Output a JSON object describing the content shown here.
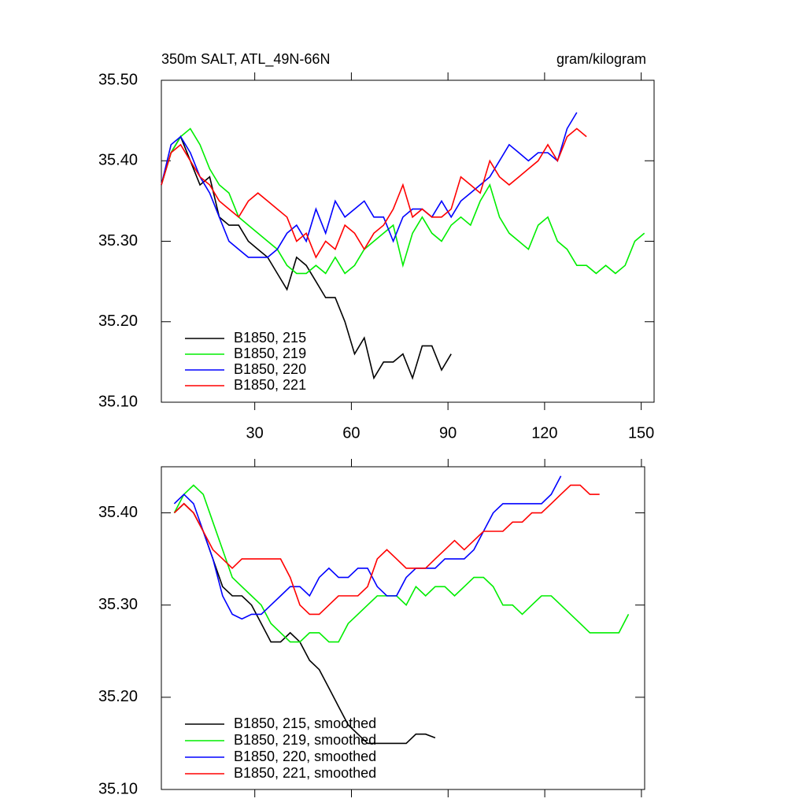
{
  "chart_data": [
    {
      "type": "line",
      "title": "350m SALT, ATL_49N-66N",
      "units": "gram/kilogram",
      "xlim": [
        1,
        154
      ],
      "xticks": [
        30,
        60,
        90,
        120,
        150
      ],
      "xtick_labels": true,
      "ylim": [
        35.1,
        35.5
      ],
      "yticks": [
        {
          "value": 35.1,
          "label": "35.10"
        },
        {
          "value": 35.2,
          "label": "35.20"
        },
        {
          "value": 35.3,
          "label": "35.30"
        },
        {
          "value": 35.4,
          "label": "35.40"
        },
        {
          "value": 35.5,
          "label": "35.50"
        }
      ],
      "legend": "lower left",
      "series": [
        {
          "name": "B1850, 215",
          "color": "#000000",
          "x": [
            1,
            4,
            7,
            10,
            13,
            16,
            19,
            22,
            25,
            28,
            31,
            34,
            37,
            40,
            43,
            46,
            49,
            52,
            55,
            58,
            61,
            64,
            67,
            70,
            73,
            76,
            79,
            82,
            85,
            88,
            91
          ],
          "values": [
            35.37,
            35.41,
            35.43,
            35.4,
            35.37,
            35.38,
            35.33,
            35.32,
            35.32,
            35.3,
            35.29,
            35.28,
            35.26,
            35.24,
            35.28,
            35.27,
            35.25,
            35.23,
            35.23,
            35.2,
            35.16,
            35.18,
            35.13,
            35.15,
            35.15,
            35.16,
            35.13,
            35.17,
            35.17,
            35.14,
            35.16
          ]
        },
        {
          "name": "B1850, 219",
          "color": "#00ee00",
          "x": [
            1,
            4,
            7,
            10,
            13,
            16,
            19,
            22,
            25,
            28,
            31,
            34,
            37,
            40,
            43,
            46,
            49,
            52,
            55,
            58,
            61,
            64,
            67,
            70,
            73,
            76,
            79,
            82,
            85,
            88,
            91,
            94,
            97,
            100,
            103,
            106,
            109,
            112,
            115,
            118,
            121,
            124,
            127,
            130,
            133,
            136,
            139,
            142,
            145,
            148,
            151
          ],
          "values": [
            35.37,
            35.41,
            35.43,
            35.44,
            35.42,
            35.39,
            35.37,
            35.36,
            35.33,
            35.32,
            35.31,
            35.3,
            35.29,
            35.27,
            35.26,
            35.26,
            35.27,
            35.26,
            35.28,
            35.26,
            35.27,
            35.29,
            35.3,
            35.31,
            35.32,
            35.27,
            35.31,
            35.33,
            35.31,
            35.3,
            35.32,
            35.33,
            35.32,
            35.35,
            35.37,
            35.33,
            35.31,
            35.3,
            35.29,
            35.32,
            35.33,
            35.3,
            35.29,
            35.27,
            35.27,
            35.26,
            35.27,
            35.26,
            35.27,
            35.3,
            35.31
          ]
        },
        {
          "name": "B1850, 220",
          "color": "#0000ff",
          "x": [
            1,
            4,
            7,
            10,
            13,
            16,
            19,
            22,
            25,
            28,
            31,
            34,
            37,
            40,
            43,
            46,
            49,
            52,
            55,
            58,
            61,
            64,
            67,
            70,
            73,
            76,
            79,
            82,
            85,
            88,
            91,
            94,
            97,
            100,
            103,
            106,
            109,
            112,
            115,
            118,
            121,
            124,
            127,
            130
          ],
          "values": [
            35.37,
            35.42,
            35.43,
            35.41,
            35.38,
            35.36,
            35.33,
            35.3,
            35.29,
            35.28,
            35.28,
            35.28,
            35.29,
            35.31,
            35.32,
            35.3,
            35.34,
            35.31,
            35.35,
            35.33,
            35.34,
            35.35,
            35.33,
            35.33,
            35.3,
            35.33,
            35.34,
            35.34,
            35.33,
            35.35,
            35.33,
            35.35,
            35.36,
            35.37,
            35.38,
            35.4,
            35.42,
            35.41,
            35.4,
            35.41,
            35.41,
            35.4,
            35.44,
            35.46
          ]
        },
        {
          "name": "B1850, 221",
          "color": "#ff0000",
          "x": [
            1,
            4,
            7,
            10,
            13,
            16,
            19,
            22,
            25,
            28,
            31,
            34,
            37,
            40,
            43,
            46,
            49,
            52,
            55,
            58,
            61,
            64,
            67,
            70,
            73,
            76,
            79,
            82,
            85,
            88,
            91,
            94,
            97,
            100,
            103,
            106,
            109,
            112,
            115,
            118,
            121,
            124,
            127,
            130,
            133
          ],
          "values": [
            35.37,
            35.41,
            35.42,
            35.4,
            35.38,
            35.37,
            35.35,
            35.34,
            35.33,
            35.35,
            35.36,
            35.35,
            35.34,
            35.33,
            35.3,
            35.31,
            35.28,
            35.3,
            35.29,
            35.32,
            35.31,
            35.29,
            35.31,
            35.32,
            35.34,
            35.37,
            35.33,
            35.34,
            35.33,
            35.33,
            35.34,
            35.38,
            35.37,
            35.36,
            35.4,
            35.38,
            35.37,
            35.38,
            35.39,
            35.4,
            35.42,
            35.4,
            35.43,
            35.44,
            35.43
          ]
        }
      ]
    },
    {
      "type": "line",
      "xlim": [
        1,
        151
      ],
      "xticks": [
        30,
        60,
        90,
        120,
        150
      ],
      "xtick_labels": false,
      "ylim": [
        35.1,
        35.45
      ],
      "yticks": [
        {
          "value": 35.1,
          "label": "35.10"
        },
        {
          "value": 35.2,
          "label": "35.20"
        },
        {
          "value": 35.3,
          "label": "35.30"
        },
        {
          "value": 35.4,
          "label": "35.40"
        }
      ],
      "legend": "lower left",
      "series": [
        {
          "name": "B1850, 215, smoothed",
          "color": "#000000",
          "x": [
            5,
            8,
            11,
            14,
            17,
            20,
            23,
            26,
            29,
            32,
            35,
            38,
            41,
            44,
            47,
            50,
            53,
            56,
            59,
            62,
            65,
            68,
            71,
            74,
            77,
            80,
            83,
            86
          ],
          "values": [
            35.4,
            35.41,
            35.4,
            35.38,
            35.35,
            35.32,
            35.31,
            35.31,
            35.3,
            35.28,
            35.26,
            35.26,
            35.27,
            35.26,
            35.24,
            35.23,
            35.21,
            35.19,
            35.17,
            35.16,
            35.15,
            35.15,
            35.15,
            35.15,
            35.15,
            35.16,
            35.16,
            35.156
          ]
        },
        {
          "name": "B1850, 219, smoothed",
          "color": "#00ee00",
          "x": [
            5,
            8,
            11,
            14,
            17,
            20,
            23,
            26,
            29,
            32,
            35,
            38,
            41,
            44,
            47,
            50,
            53,
            56,
            59,
            62,
            65,
            68,
            71,
            74,
            77,
            80,
            83,
            86,
            89,
            92,
            95,
            98,
            101,
            104,
            107,
            110,
            113,
            116,
            119,
            122,
            125,
            128,
            131,
            134,
            137,
            140,
            143,
            146
          ],
          "values": [
            35.4,
            35.42,
            35.43,
            35.42,
            35.39,
            35.36,
            35.33,
            35.32,
            35.31,
            35.3,
            35.28,
            35.27,
            35.26,
            35.26,
            35.27,
            35.27,
            35.26,
            35.26,
            35.28,
            35.29,
            35.3,
            35.31,
            35.31,
            35.31,
            35.3,
            35.32,
            35.31,
            35.32,
            35.32,
            35.31,
            35.32,
            35.33,
            35.33,
            35.32,
            35.3,
            35.3,
            35.29,
            35.3,
            35.31,
            35.31,
            35.3,
            35.29,
            35.28,
            35.27,
            35.27,
            35.27,
            35.27,
            35.29
          ]
        },
        {
          "name": "B1850, 220, smoothed",
          "color": "#0000ff",
          "x": [
            5,
            8,
            11,
            14,
            17,
            20,
            23,
            26,
            29,
            32,
            35,
            38,
            41,
            44,
            47,
            50,
            53,
            56,
            59,
            62,
            65,
            68,
            71,
            74,
            77,
            80,
            83,
            86,
            89,
            92,
            95,
            98,
            101,
            104,
            107,
            110,
            113,
            116,
            119,
            122,
            125
          ],
          "values": [
            35.41,
            35.42,
            35.41,
            35.38,
            35.35,
            35.31,
            35.29,
            35.285,
            35.29,
            35.29,
            35.3,
            35.31,
            35.32,
            35.32,
            35.31,
            35.33,
            35.34,
            35.33,
            35.33,
            35.34,
            35.34,
            35.32,
            35.31,
            35.31,
            35.33,
            35.34,
            35.34,
            35.34,
            35.35,
            35.35,
            35.35,
            35.36,
            35.38,
            35.4,
            35.41,
            35.41,
            35.41,
            35.41,
            35.41,
            35.42,
            35.44
          ]
        },
        {
          "name": "B1850, 221, smoothed",
          "color": "#ff0000",
          "x": [
            5,
            8,
            11,
            14,
            17,
            20,
            23,
            26,
            29,
            32,
            35,
            38,
            41,
            44,
            47,
            50,
            53,
            56,
            59,
            62,
            65,
            68,
            71,
            74,
            77,
            80,
            83,
            86,
            89,
            92,
            95,
            98,
            101,
            104,
            107,
            110,
            113,
            116,
            119,
            122,
            125,
            128,
            131,
            134,
            137
          ],
          "values": [
            35.4,
            35.41,
            35.4,
            35.38,
            35.36,
            35.35,
            35.34,
            35.35,
            35.35,
            35.35,
            35.35,
            35.35,
            35.33,
            35.3,
            35.29,
            35.29,
            35.3,
            35.31,
            35.31,
            35.31,
            35.32,
            35.35,
            35.36,
            35.35,
            35.34,
            35.34,
            35.34,
            35.35,
            35.36,
            35.37,
            35.36,
            35.37,
            35.38,
            35.38,
            35.38,
            35.39,
            35.39,
            35.4,
            35.4,
            35.41,
            35.42,
            35.43,
            35.43,
            35.42,
            35.42
          ]
        }
      ]
    }
  ]
}
